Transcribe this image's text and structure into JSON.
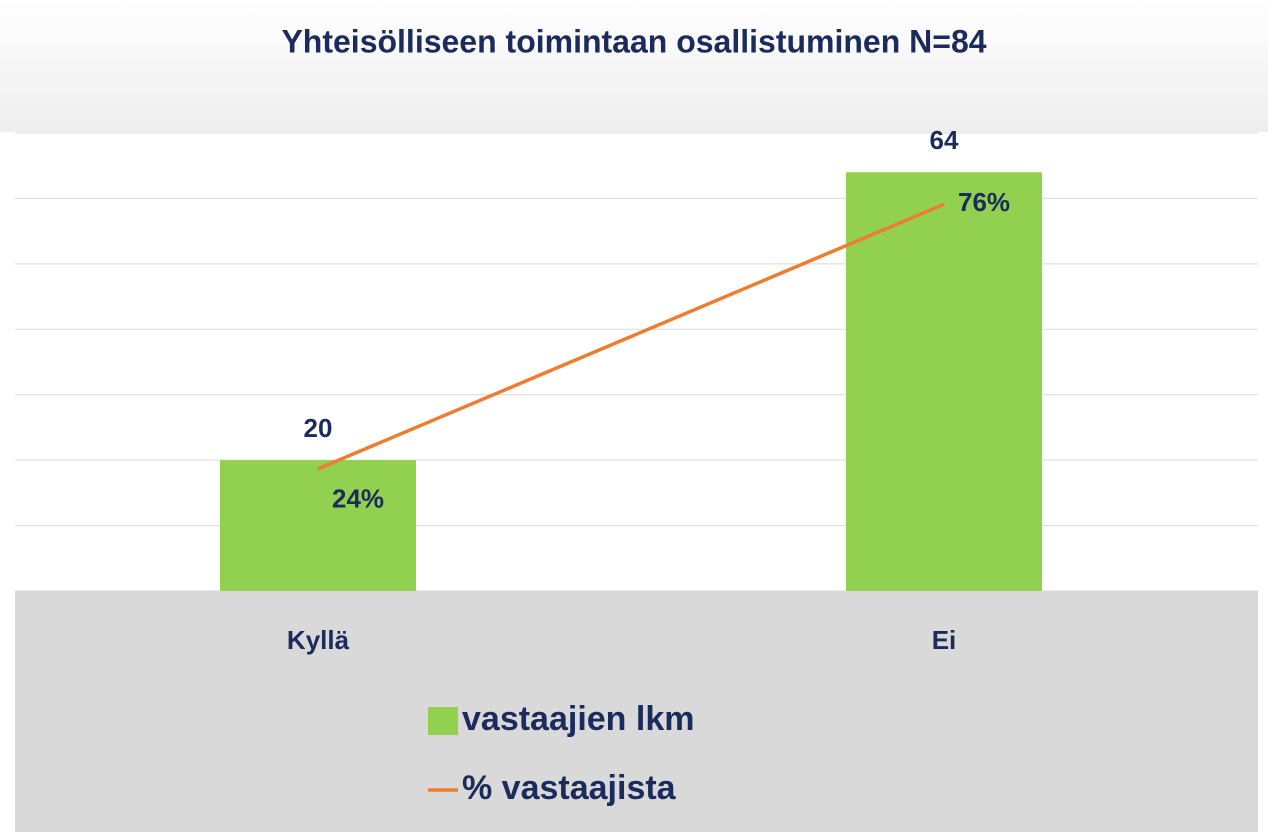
{
  "chart_data": {
    "type": "bar-line",
    "title": "Yhteisölliseen toimintaan osallistuminen N=84",
    "categories": [
      "Kyllä",
      "Ei"
    ],
    "series": [
      {
        "name": "vastaajien lkm",
        "color": "#92d050",
        "type": "bar",
        "values": [
          20,
          64
        ]
      },
      {
        "name": "% vastaajista",
        "color": "#ed7d31",
        "type": "line",
        "axis": "y2",
        "values": [
          24,
          76
        ],
        "value_labels": [
          "24%",
          "76%"
        ]
      }
    ],
    "ylim": [
      0,
      70
    ],
    "yticks": [
      0,
      10,
      20,
      30,
      40,
      50,
      60,
      70
    ],
    "y2lim": [
      0,
      90
    ],
    "grid": true,
    "legend": "bottom"
  }
}
